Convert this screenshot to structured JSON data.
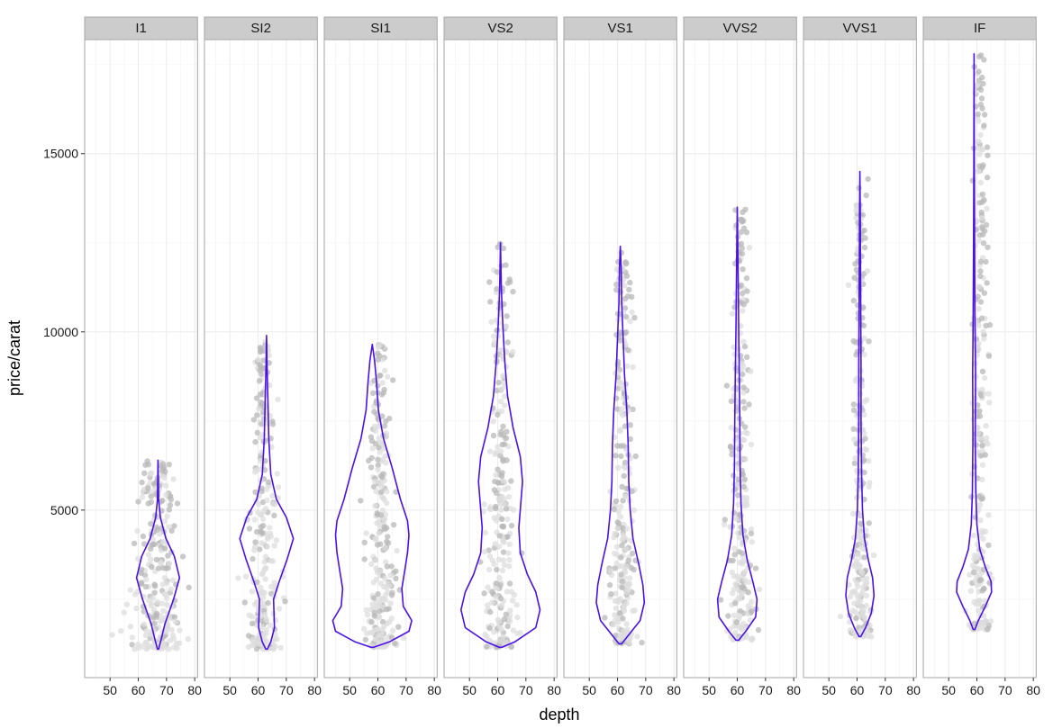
{
  "chart_data": {
    "type": "scatter",
    "subtype": "faceted jittered scatter with violin overlay",
    "xlabel": "depth",
    "ylabel": "price/carat",
    "xlim": [
      41,
      81
    ],
    "ylim": [
      300,
      18200
    ],
    "x_ticks": [
      50,
      60,
      70,
      80
    ],
    "y_ticks": [
      5000,
      10000,
      15000
    ],
    "grid": true,
    "colors": {
      "panel_border": "#a6a6a6",
      "strip_fill": "#cccccc",
      "grid_major": "#ebebeb",
      "grid_minor": "#f5f5f5",
      "point_light": "#dedede",
      "point_dark": "#b8b8b8",
      "violin": "#4a12e8"
    },
    "facets": [
      {
        "label": "I1",
        "center": 67,
        "spread": 5,
        "ymin": 1100,
        "ymax": 6400,
        "violin_x": 67,
        "violin": [
          [
            1100,
            0.2
          ],
          [
            1400,
            1.2
          ],
          [
            1800,
            2.4
          ],
          [
            2500,
            5.5
          ],
          [
            3100,
            7.6
          ],
          [
            3700,
            5.8
          ],
          [
            4200,
            2.8
          ],
          [
            4800,
            0.8
          ],
          [
            5300,
            0.2
          ],
          [
            6400,
            0
          ]
        ]
      },
      {
        "label": "SI2",
        "center": 62,
        "spread": 3,
        "ymin": 1100,
        "ymax": 9900,
        "violin_x": 63,
        "violin": [
          [
            1100,
            0.3
          ],
          [
            1300,
            1.5
          ],
          [
            1700,
            2.8
          ],
          [
            2500,
            2.5
          ],
          [
            3000,
            4.5
          ],
          [
            3600,
            7.2
          ],
          [
            4200,
            9.5
          ],
          [
            4800,
            7.0
          ],
          [
            5300,
            3.5
          ],
          [
            6000,
            1.5
          ],
          [
            7000,
            0.8
          ],
          [
            8000,
            0.5
          ],
          [
            9000,
            0.2
          ],
          [
            9900,
            0
          ]
        ]
      },
      {
        "label": "SI1",
        "center": 61,
        "spread": 3,
        "ymin": 1150,
        "ymax": 9650,
        "violin_x": 58,
        "violin": [
          [
            1150,
            0.5
          ],
          [
            1300,
            6
          ],
          [
            1600,
            13
          ],
          [
            1900,
            14
          ],
          [
            2300,
            11
          ],
          [
            2800,
            10.5
          ],
          [
            3300,
            11.5
          ],
          [
            3800,
            12.5
          ],
          [
            4300,
            13
          ],
          [
            4700,
            12.5
          ],
          [
            5300,
            10
          ],
          [
            6200,
            7
          ],
          [
            7000,
            4
          ],
          [
            7800,
            2.2
          ],
          [
            8600,
            1.5
          ],
          [
            9200,
            0.8
          ],
          [
            9650,
            0
          ]
        ]
      },
      {
        "label": "VS2",
        "center": 61,
        "spread": 3,
        "ymin": 1150,
        "ymax": 12500,
        "violin_x": 61,
        "violin": [
          [
            1150,
            0.5
          ],
          [
            1300,
            5
          ],
          [
            1700,
            12.5
          ],
          [
            2200,
            14
          ],
          [
            2700,
            12.5
          ],
          [
            3200,
            9.5
          ],
          [
            3800,
            7
          ],
          [
            4500,
            6.5
          ],
          [
            5200,
            7.2
          ],
          [
            5800,
            7.8
          ],
          [
            6500,
            7
          ],
          [
            7300,
            4.5
          ],
          [
            8200,
            2.5
          ],
          [
            9200,
            1.5
          ],
          [
            10200,
            0.8
          ],
          [
            11200,
            0.3
          ],
          [
            12500,
            0
          ]
        ]
      },
      {
        "label": "VS1",
        "center": 62,
        "spread": 2.5,
        "ymin": 1250,
        "ymax": 12400,
        "violin_x": 61,
        "violin": [
          [
            1250,
            0.5
          ],
          [
            1500,
            3
          ],
          [
            1900,
            7
          ],
          [
            2400,
            8.5
          ],
          [
            2900,
            8
          ],
          [
            3500,
            6.5
          ],
          [
            4200,
            4.5
          ],
          [
            5000,
            3.5
          ],
          [
            5800,
            3
          ],
          [
            6800,
            2.8
          ],
          [
            7800,
            2.3
          ],
          [
            8800,
            1.5
          ],
          [
            9800,
            1.0
          ],
          [
            10800,
            0.5
          ],
          [
            11800,
            0.3
          ],
          [
            12400,
            0
          ]
        ]
      },
      {
        "label": "VVS2",
        "center": 61,
        "spread": 2.5,
        "ymin": 1350,
        "ymax": 13500,
        "violin_x": 60,
        "violin": [
          [
            1350,
            0.5
          ],
          [
            1600,
            3
          ],
          [
            2000,
            6.5
          ],
          [
            2500,
            7
          ],
          [
            3000,
            5.5
          ],
          [
            3600,
            3.5
          ],
          [
            4300,
            2
          ],
          [
            5200,
            1.3
          ],
          [
            6300,
            1.0
          ],
          [
            7500,
            0.9
          ],
          [
            8800,
            0.7
          ],
          [
            10000,
            0.5
          ],
          [
            11500,
            0.3
          ],
          [
            12500,
            0.15
          ],
          [
            13500,
            0
          ]
        ]
      },
      {
        "label": "VVS1",
        "center": 61,
        "spread": 2,
        "ymin": 1450,
        "ymax": 14500,
        "violin_x": 61,
        "violin": [
          [
            1450,
            0.3
          ],
          [
            1700,
            2
          ],
          [
            2100,
            4
          ],
          [
            2600,
            5
          ],
          [
            3100,
            4.5
          ],
          [
            3600,
            3
          ],
          [
            4200,
            1.6
          ],
          [
            5000,
            0.9
          ],
          [
            6000,
            0.6
          ],
          [
            7500,
            0.4
          ],
          [
            9000,
            0.4
          ],
          [
            10500,
            0.3
          ],
          [
            12000,
            0.2
          ],
          [
            13500,
            0.1
          ],
          [
            14500,
            0
          ]
        ]
      },
      {
        "label": "IF",
        "center": 61,
        "spread": 2,
        "ymin": 1650,
        "ymax": 17800,
        "violin_x": 59,
        "violin": [
          [
            1650,
            0.3
          ],
          [
            1900,
            1.5
          ],
          [
            2300,
            4
          ],
          [
            2700,
            6.2
          ],
          [
            3000,
            6
          ],
          [
            3400,
            4
          ],
          [
            3900,
            2
          ],
          [
            4600,
            1.0
          ],
          [
            5500,
            0.6
          ],
          [
            7000,
            0.4
          ],
          [
            8800,
            0.5
          ],
          [
            10500,
            0.3
          ],
          [
            12500,
            0.2
          ],
          [
            14500,
            0.1
          ],
          [
            16000,
            0.05
          ],
          [
            17800,
            0
          ]
        ]
      }
    ]
  }
}
